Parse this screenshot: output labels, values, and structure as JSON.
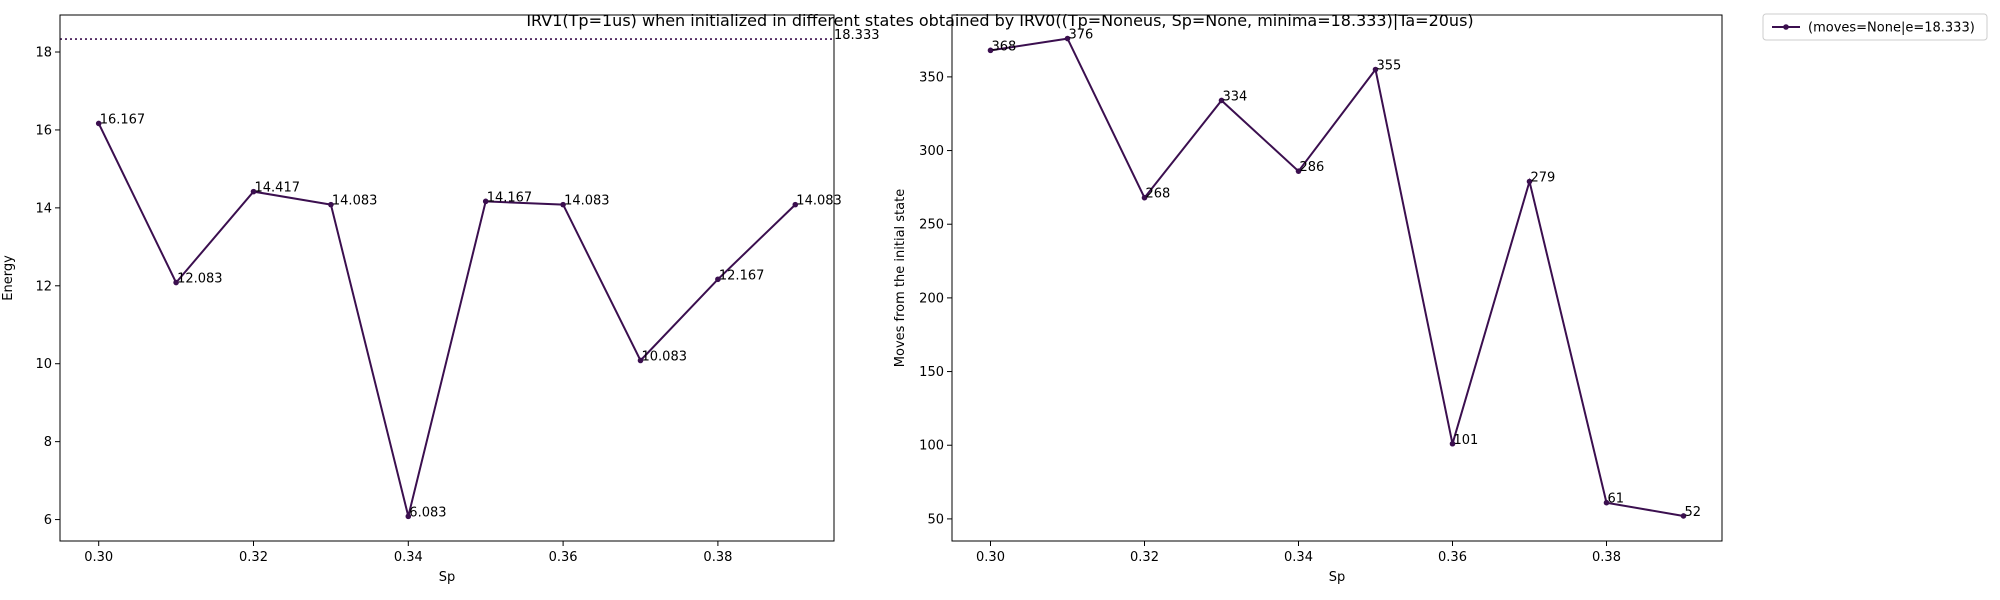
{
  "title": "IRV1(Tp=1us) when initialized in different states obtained by IRV0((Tp=Noneus, Sp=None, minima=18.333)|Ta=20us)",
  "colors": {
    "series": "#3b0f4f",
    "axes": "#000000",
    "background": "#ffffff"
  },
  "chart_data": [
    {
      "type": "line",
      "xlabel": "Sp",
      "ylabel": "Energy",
      "xlim": [
        0.295,
        0.395
      ],
      "ylim": [
        5.45,
        18.95
      ],
      "x_ticks": [
        "0.30",
        "0.32",
        "0.34",
        "0.36",
        "0.38"
      ],
      "x_tick_values": [
        0.3,
        0.32,
        0.34,
        0.36,
        0.38
      ],
      "y_ticks": [
        "6",
        "8",
        "10",
        "12",
        "14",
        "16",
        "18"
      ],
      "y_tick_values": [
        6,
        8,
        10,
        12,
        14,
        16,
        18
      ],
      "x": [
        0.3,
        0.31,
        0.32,
        0.33,
        0.34,
        0.35,
        0.36,
        0.37,
        0.38,
        0.39
      ],
      "series": [
        {
          "values": [
            16.167,
            12.083,
            14.417,
            14.083,
            6.083,
            14.167,
            14.083,
            10.083,
            12.167,
            14.083
          ],
          "labels": [
            "16.167",
            "12.083",
            "14.417",
            "14.083",
            "6.083",
            "14.167",
            "14.083",
            "10.083",
            "12.167",
            "14.083"
          ]
        }
      ],
      "reference_line": {
        "value": 18.333,
        "label": "18.333",
        "style": "dotted"
      },
      "grid": false
    },
    {
      "type": "line",
      "xlabel": "Sp",
      "ylabel": "Moves from the initial state",
      "xlim": [
        0.295,
        0.395
      ],
      "ylim": [
        35,
        392
      ],
      "x_ticks": [
        "0.30",
        "0.32",
        "0.34",
        "0.36",
        "0.38"
      ],
      "x_tick_values": [
        0.3,
        0.32,
        0.34,
        0.36,
        0.38
      ],
      "y_ticks": [
        "50",
        "100",
        "150",
        "200",
        "250",
        "300",
        "350"
      ],
      "y_tick_values": [
        50,
        100,
        150,
        200,
        250,
        300,
        350
      ],
      "x": [
        0.3,
        0.31,
        0.32,
        0.33,
        0.34,
        0.35,
        0.36,
        0.37,
        0.38,
        0.39
      ],
      "series": [
        {
          "name": "(moves=None|e=18.333)",
          "values": [
            368,
            376,
            268,
            334,
            286,
            355,
            101,
            279,
            61,
            52
          ],
          "labels": [
            "368",
            "376",
            "268",
            "334",
            "286",
            "355",
            "101",
            "279",
            "61",
            "52"
          ]
        }
      ],
      "legend": {
        "placement": "outside-top-right",
        "entries": [
          "(moves=None|e=18.333)"
        ]
      },
      "grid": false
    }
  ]
}
